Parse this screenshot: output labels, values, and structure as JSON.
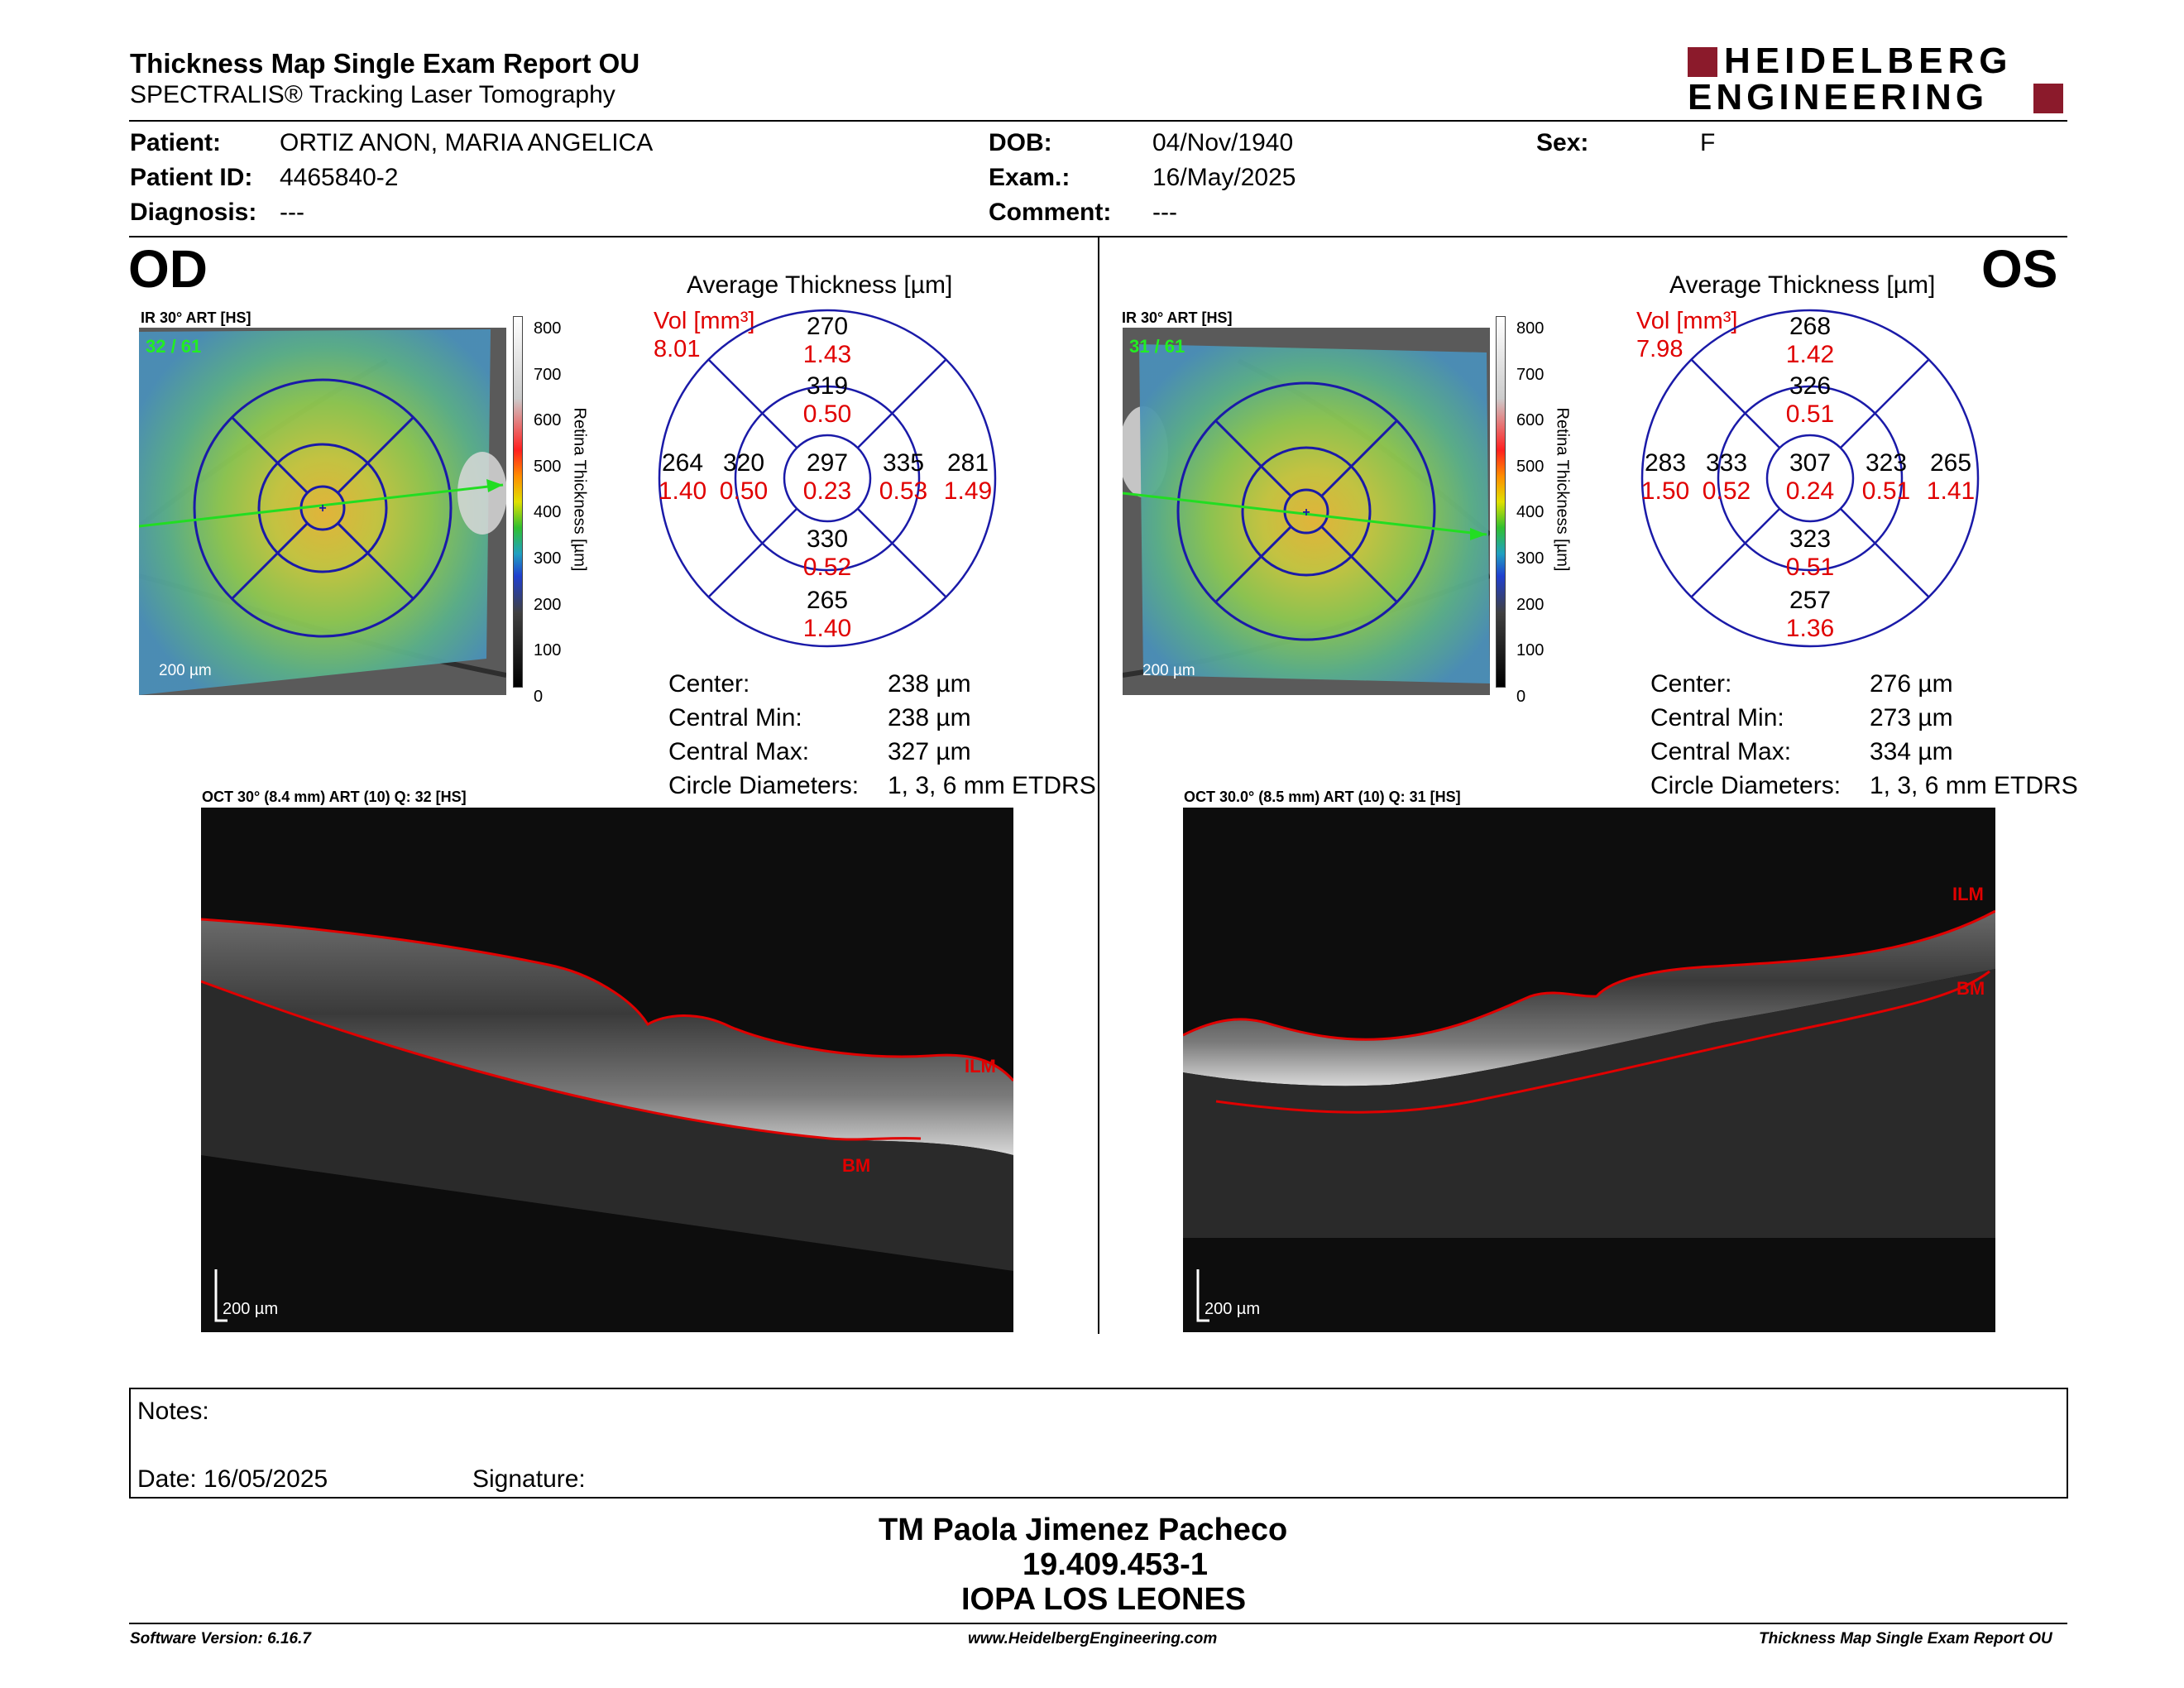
{
  "header": {
    "title": "Thickness Map Single Exam Report OU",
    "subtitle": "SPECTRALIS® Tracking Laser Tomography",
    "logo_line1": "HEIDELBERG",
    "logo_line2": "ENGINEERING"
  },
  "patient": {
    "patient_label": "Patient:",
    "patient_name": "ORTIZ ANON, MARIA ANGELICA",
    "id_label": "Patient ID:",
    "id": "4465840-2",
    "diagnosis_label": "Diagnosis:",
    "diagnosis": "---",
    "dob_label": "DOB:",
    "dob": "04/Nov/1940",
    "exam_label": "Exam.:",
    "exam": "16/May/2025",
    "comment_label": "Comment:",
    "comment": "---",
    "sex_label": "Sex:",
    "sex": "F"
  },
  "colors": {
    "brand": "#8b1a2b",
    "ring": "#1a1aa8",
    "value_red": "#e00000",
    "ilm": "#e00000"
  },
  "od": {
    "eye": "OD",
    "ir_label": "IR 30° ART [HS]",
    "frames": "32 / 61",
    "scale": "200 µm",
    "colorbar_title": "Retina  Thickness [µm]",
    "colorbar_ticks": [
      "800",
      "700",
      "600",
      "500",
      "400",
      "300",
      "200",
      "100",
      "0"
    ],
    "avg_title": "Average Thickness [µm]",
    "vol_label": "Vol [mm³]",
    "vol_total": "8.01",
    "sectors": {
      "outer_sup": {
        "t": "270",
        "v": "1.43"
      },
      "inner_sup": {
        "t": "319",
        "v": "0.50"
      },
      "outer_left": {
        "t": "264",
        "v": "1.40"
      },
      "inner_left": {
        "t": "320",
        "v": "0.50"
      },
      "center": {
        "t": "297",
        "v": "0.23"
      },
      "inner_right": {
        "t": "335",
        "v": "0.53"
      },
      "outer_right": {
        "t": "281",
        "v": "1.49"
      },
      "inner_inf": {
        "t": "330",
        "v": "0.52"
      },
      "outer_inf": {
        "t": "265",
        "v": "1.40"
      }
    },
    "stats": {
      "center_label": "Center:",
      "center": "238 µm",
      "min_label": "Central Min:",
      "min": "238 µm",
      "max_label": "Central Max:",
      "max": "327 µm",
      "diam_label": "Circle Diameters:",
      "diam": "1, 3, 6 mm ETDRS"
    },
    "oct_label": "OCT 30° (8.4 mm) ART (10) Q: 32 [HS]",
    "ilm": "ILM",
    "bm": "BM",
    "oct_scale": "200 µm"
  },
  "os": {
    "eye": "OS",
    "ir_label": "IR 30° ART [HS]",
    "frames": "31 / 61",
    "scale": "200 µm",
    "colorbar_title": "Retina  Thickness [µm]",
    "colorbar_ticks": [
      "800",
      "700",
      "600",
      "500",
      "400",
      "300",
      "200",
      "100",
      "0"
    ],
    "avg_title": "Average Thickness [µm]",
    "vol_label": "Vol [mm³]",
    "vol_total": "7.98",
    "sectors": {
      "outer_sup": {
        "t": "268",
        "v": "1.42"
      },
      "inner_sup": {
        "t": "326",
        "v": "0.51"
      },
      "outer_left": {
        "t": "283",
        "v": "1.50"
      },
      "inner_left": {
        "t": "333",
        "v": "0.52"
      },
      "center": {
        "t": "307",
        "v": "0.24"
      },
      "inner_right": {
        "t": "323",
        "v": "0.51"
      },
      "outer_right": {
        "t": "265",
        "v": "1.41"
      },
      "inner_inf": {
        "t": "323",
        "v": "0.51"
      },
      "outer_inf": {
        "t": "257",
        "v": "1.36"
      }
    },
    "stats": {
      "center_label": "Center:",
      "center": "276 µm",
      "min_label": "Central Min:",
      "min": "273 µm",
      "max_label": "Central Max:",
      "max": "334 µm",
      "diam_label": "Circle Diameters:",
      "diam": "1, 3, 6 mm ETDRS"
    },
    "oct_label": "OCT 30.0° (8.5 mm) ART (10) Q: 31 [HS]",
    "ilm": "ILM",
    "bm": "BM",
    "oct_scale": "200 µm"
  },
  "notes": {
    "notes_label": "Notes:",
    "date_label": "Date: 16/05/2025",
    "signature_label": "Signature:"
  },
  "signer": {
    "name": "TM Paola Jimenez Pacheco",
    "rut": "19.409.453-1",
    "org": "IOPA LOS LEONES"
  },
  "footer": {
    "version": "Software Version: 6.16.7",
    "url": "www.HeidelbergEngineering.com",
    "report": "Thickness Map Single Exam Report OU"
  }
}
